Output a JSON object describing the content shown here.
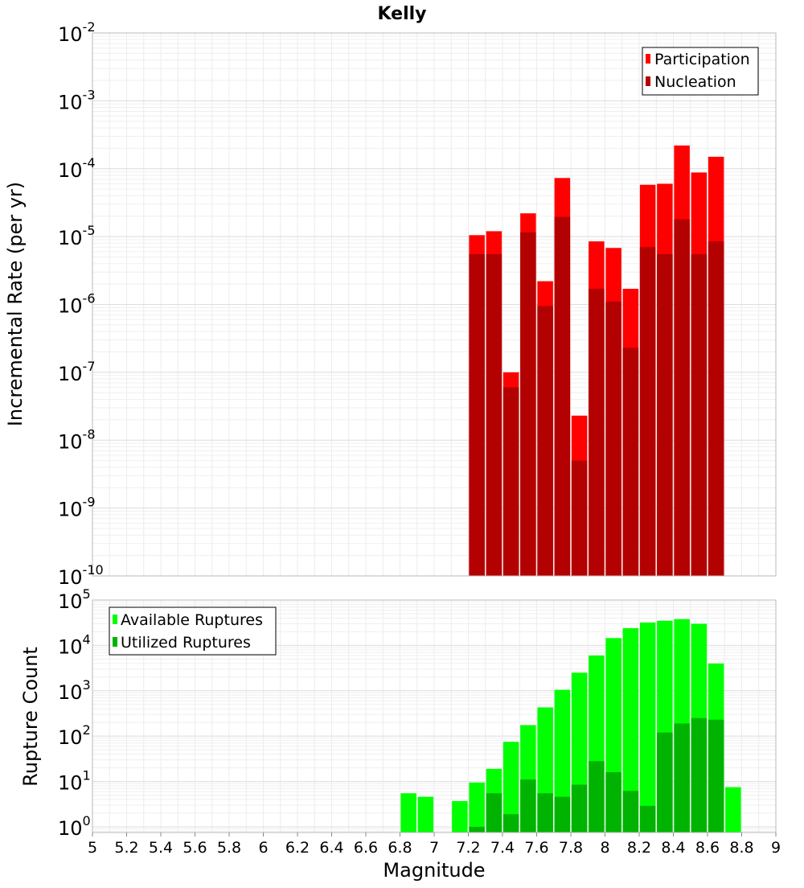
{
  "title": "Kelly",
  "chart_data": [
    {
      "type": "bar",
      "title": "Kelly",
      "xlabel": "Magnitude",
      "ylabel": "Incremental Rate (per yr)",
      "yscale": "log",
      "xlim": [
        5,
        9
      ],
      "ylim": [
        1e-10,
        0.01
      ],
      "grid": true,
      "legend_position": "top-right",
      "x": [
        7.25,
        7.35,
        7.45,
        7.55,
        7.65,
        7.75,
        7.85,
        7.95,
        8.05,
        8.15,
        8.25,
        8.35,
        8.45,
        8.55,
        8.65
      ],
      "series": [
        {
          "name": "Participation",
          "color": "#ff0000",
          "values": [
            1.05e-05,
            1.2e-05,
            1e-07,
            2.2e-05,
            2.2e-06,
            7.3e-05,
            2.3e-08,
            8.5e-06,
            6.8e-06,
            1.7e-06,
            5.8e-05,
            6e-05,
            0.00022,
            8.8e-05,
            0.00015
          ]
        },
        {
          "name": "Nucleation",
          "color": "#b30000",
          "values": [
            5.5e-06,
            5.5e-06,
            6e-08,
            1.15e-05,
            9.5e-07,
            1.95e-05,
            5e-09,
            1.7e-06,
            1.1e-06,
            2.3e-07,
            7e-06,
            5.5e-06,
            1.8e-05,
            5.5e-06,
            8.5e-06
          ]
        }
      ],
      "yticks": [
        {
          "base": "10",
          "exp": "-10"
        },
        {
          "base": "10",
          "exp": "-9"
        },
        {
          "base": "10",
          "exp": "-8"
        },
        {
          "base": "10",
          "exp": "-7"
        },
        {
          "base": "10",
          "exp": "-6"
        },
        {
          "base": "10",
          "exp": "-5"
        },
        {
          "base": "10",
          "exp": "-4"
        },
        {
          "base": "10",
          "exp": "-3"
        },
        {
          "base": "10",
          "exp": "-2"
        }
      ]
    },
    {
      "type": "bar",
      "xlabel": "Magnitude",
      "ylabel": "Rupture Count",
      "yscale": "log",
      "xlim": [
        5,
        9
      ],
      "ylim": [
        0.75,
        100000
      ],
      "grid": true,
      "legend_position": "top-left",
      "series": [
        {
          "name": "Available Ruptures",
          "color": "#00ff00",
          "x": [
            6.85,
            6.95,
            7.15,
            7.25,
            7.35,
            7.45,
            7.55,
            7.65,
            7.75,
            7.85,
            7.95,
            8.05,
            8.15,
            8.25,
            8.35,
            8.45,
            8.55,
            8.65,
            8.75
          ],
          "values": [
            5.5,
            4.6,
            3.7,
            9.5,
            19,
            75,
            175,
            430,
            1050,
            2500,
            6000,
            14500,
            24000,
            32000,
            35000,
            38000,
            30000,
            4000,
            7.5
          ]
        },
        {
          "name": "Utilized Ruptures",
          "color": "#00b300",
          "x": [
            7.25,
            7.35,
            7.45,
            7.55,
            7.65,
            7.75,
            7.85,
            7.95,
            8.05,
            8.15,
            8.25,
            8.35,
            8.45,
            8.55,
            8.65
          ],
          "values": [
            1,
            5.5,
            1.9,
            11,
            5.5,
            4.6,
            8.5,
            28,
            16,
            6.2,
            2.9,
            120,
            190,
            250,
            230
          ]
        }
      ],
      "yticks": [
        {
          "base": "10",
          "exp": "0"
        },
        {
          "base": "10",
          "exp": "1"
        },
        {
          "base": "10",
          "exp": "2"
        },
        {
          "base": "10",
          "exp": "3"
        },
        {
          "base": "10",
          "exp": "4"
        },
        {
          "base": "10",
          "exp": "5"
        }
      ],
      "xtick_labels": [
        "5",
        "5.2",
        "5.4",
        "5.6",
        "5.8",
        "6",
        "6.2",
        "6.4",
        "6.6",
        "6.8",
        "7",
        "7.2",
        "7.4",
        "7.6",
        "7.8",
        "8",
        "8.2",
        "8.4",
        "8.6",
        "8.8",
        "9"
      ]
    }
  ]
}
